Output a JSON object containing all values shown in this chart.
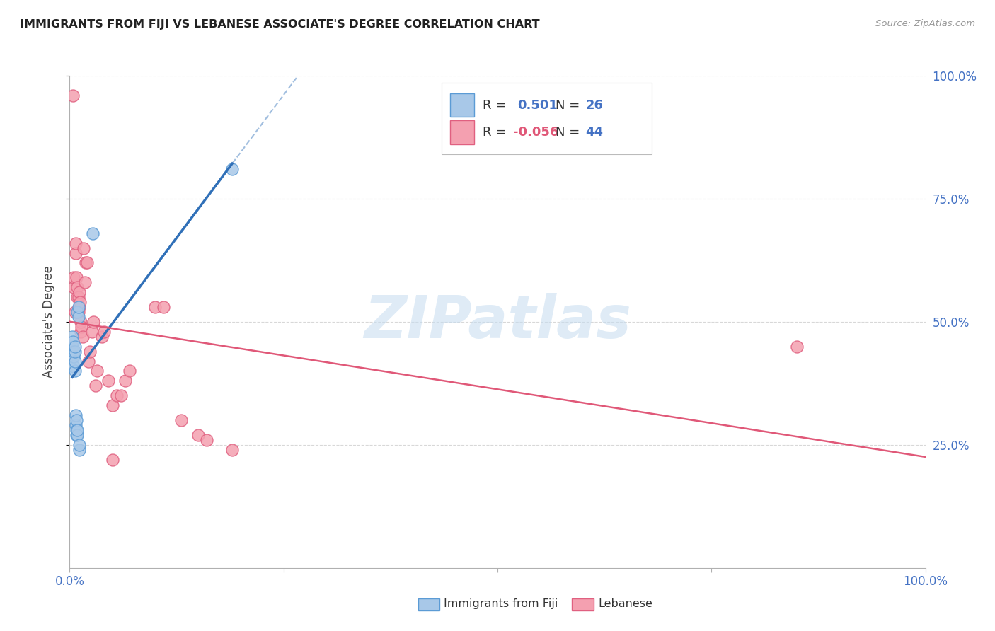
{
  "title": "IMMIGRANTS FROM FIJI VS LEBANESE ASSOCIATE'S DEGREE CORRELATION CHART",
  "source": "Source: ZipAtlas.com",
  "ylabel": "Associate's Degree",
  "fiji_R": "0.501",
  "fiji_N": "26",
  "lebanese_R": "-0.056",
  "lebanese_N": "44",
  "fiji_color": "#a8c8e8",
  "lebanese_color": "#f4a0b0",
  "fiji_edge_color": "#5b9bd5",
  "lebanese_edge_color": "#e06080",
  "fiji_line_color": "#3070b8",
  "lebanese_line_color": "#e05878",
  "watermark": "ZIPatlas",
  "xlim": [
    0.0,
    1.0
  ],
  "ylim": [
    0.0,
    1.0
  ],
  "fiji_x": [
    0.003,
    0.003,
    0.004,
    0.004,
    0.004,
    0.005,
    0.005,
    0.005,
    0.006,
    0.006,
    0.006,
    0.006,
    0.007,
    0.007,
    0.008,
    0.008,
    0.008,
    0.009,
    0.009,
    0.009,
    0.01,
    0.01,
    0.011,
    0.011,
    0.027,
    0.19
  ],
  "fiji_y": [
    0.45,
    0.47,
    0.43,
    0.44,
    0.46,
    0.41,
    0.43,
    0.44,
    0.4,
    0.42,
    0.44,
    0.45,
    0.29,
    0.31,
    0.27,
    0.28,
    0.3,
    0.27,
    0.28,
    0.52,
    0.51,
    0.53,
    0.24,
    0.25,
    0.68,
    0.81
  ],
  "lebanese_x": [
    0.004,
    0.005,
    0.005,
    0.006,
    0.007,
    0.007,
    0.008,
    0.009,
    0.009,
    0.01,
    0.01,
    0.011,
    0.011,
    0.012,
    0.013,
    0.013,
    0.014,
    0.015,
    0.016,
    0.018,
    0.019,
    0.02,
    0.022,
    0.024,
    0.026,
    0.028,
    0.03,
    0.032,
    0.038,
    0.04,
    0.045,
    0.05,
    0.055,
    0.06,
    0.065,
    0.07,
    0.1,
    0.11,
    0.13,
    0.15,
    0.16,
    0.19,
    0.85,
    0.05
  ],
  "lebanese_y": [
    0.96,
    0.57,
    0.59,
    0.52,
    0.64,
    0.66,
    0.59,
    0.55,
    0.57,
    0.52,
    0.55,
    0.53,
    0.56,
    0.54,
    0.48,
    0.5,
    0.49,
    0.47,
    0.65,
    0.58,
    0.62,
    0.62,
    0.42,
    0.44,
    0.48,
    0.5,
    0.37,
    0.4,
    0.47,
    0.48,
    0.38,
    0.33,
    0.35,
    0.35,
    0.38,
    0.4,
    0.53,
    0.53,
    0.3,
    0.27,
    0.26,
    0.24,
    0.45,
    0.22
  ],
  "grid_color": "#d8d8d8",
  "background_color": "#ffffff",
  "axis_color": "#b0b0b0",
  "label_color": "#4472c4",
  "title_color": "#222222"
}
